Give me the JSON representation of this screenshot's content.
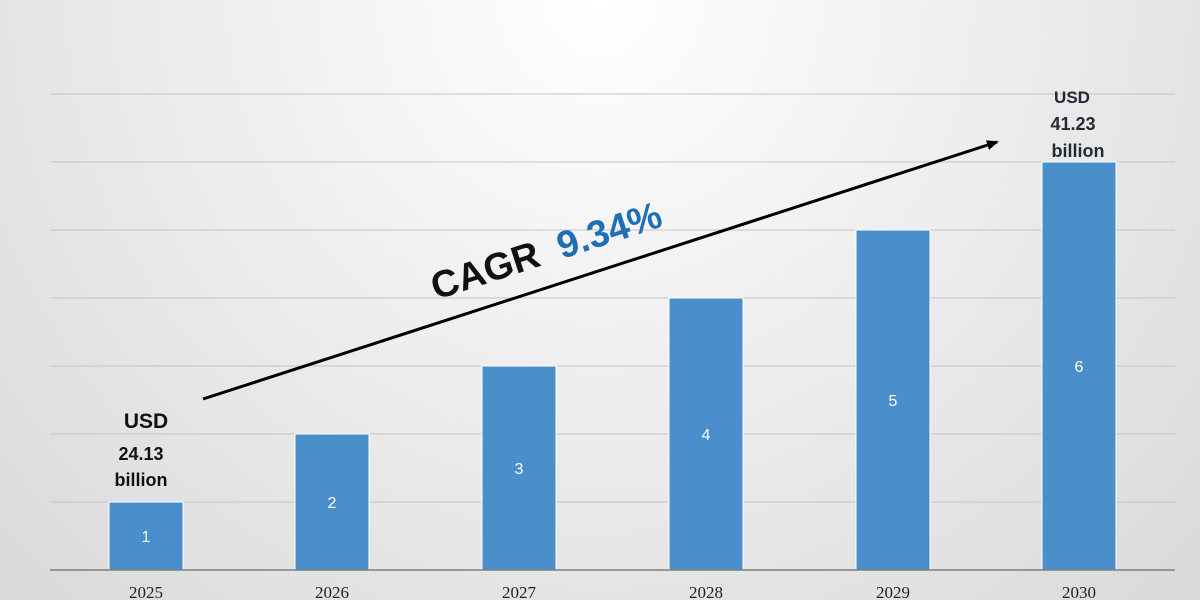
{
  "chart_data": {
    "type": "bar",
    "categories": [
      "2025",
      "2026",
      "2027",
      "2028",
      "2029",
      "2030"
    ],
    "values": [
      1,
      2,
      3,
      4,
      5,
      6
    ],
    "data_labels": [
      "1",
      "2",
      "3",
      "4",
      "5",
      "6"
    ],
    "ylim": [
      0,
      7
    ],
    "grid": true,
    "bar_color": "#4a8fcb",
    "start_annotation": {
      "line1": "USD",
      "line2": "24.13",
      "line3": "billion"
    },
    "end_annotation": {
      "line1": "USD",
      "line2": "41.23",
      "line3": "billion"
    },
    "cagr": {
      "label": "CAGR",
      "value": "9.34%",
      "value_color": "#1f6fb8"
    }
  }
}
